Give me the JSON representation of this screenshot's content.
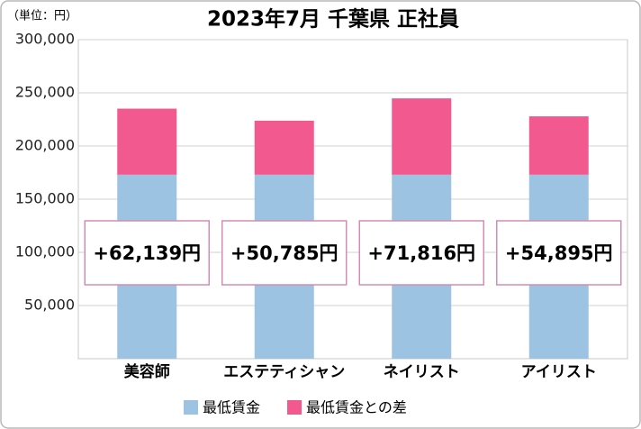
{
  "chart_data": {
    "type": "stacked-bar",
    "title": "2023年7月 千葉県 正社員",
    "unit_label": "（単位：円）",
    "categories": [
      "美容師",
      "エステティシャン",
      "ネイリスト",
      "アイリスト"
    ],
    "series": [
      {
        "name": "最低賃金",
        "color": "#9dc3e2",
        "values": [
          173000,
          173000,
          173000,
          173000
        ]
      },
      {
        "name": "最低賃金との差",
        "color": "#f25a8f",
        "values": [
          62139,
          50785,
          71816,
          54895
        ],
        "value_labels": [
          "+62,139円",
          "+50,785円",
          "+71,816円",
          "+54,895円"
        ]
      }
    ],
    "ylim": [
      0,
      300000
    ],
    "yticks": [
      {
        "value": 50000,
        "label": "50,000"
      },
      {
        "value": 100000,
        "label": "100,000"
      },
      {
        "value": 150000,
        "label": "150,000"
      },
      {
        "value": 200000,
        "label": "200,000"
      },
      {
        "value": 250000,
        "label": "250,000"
      },
      {
        "value": 300000,
        "label": "300,000"
      }
    ],
    "grid": true,
    "legend": "bottom"
  }
}
